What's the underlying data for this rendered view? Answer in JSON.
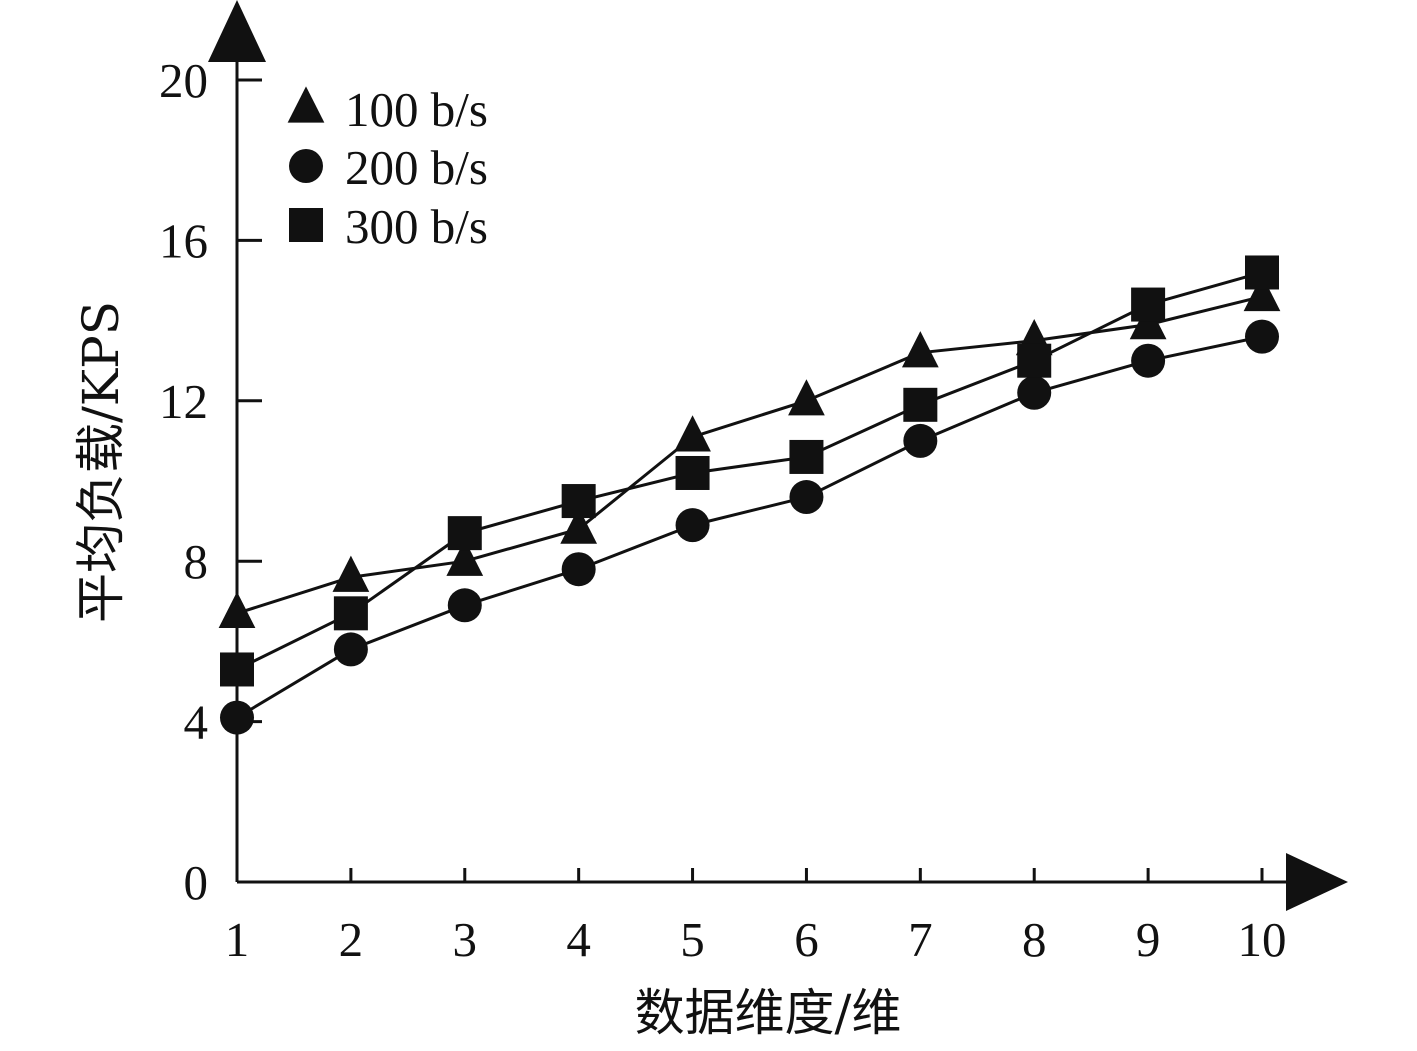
{
  "chart_data": {
    "type": "line",
    "x": [
      1,
      2,
      3,
      4,
      5,
      6,
      7,
      8,
      9,
      10
    ],
    "ylim": [
      0,
      20
    ],
    "xlabel": "数据维度/维",
    "ylabel": "平均负载/KPS",
    "x_ticks": [
      "1",
      "2",
      "3",
      "4",
      "5",
      "6",
      "7",
      "8",
      "9",
      "10"
    ],
    "y_ticks": [
      "0",
      "4",
      "8",
      "12",
      "16",
      "20"
    ],
    "grid": false,
    "legend_position": "top-left",
    "series": [
      {
        "name": "100 b/s",
        "marker": "triangle",
        "values": [
          6.7,
          7.6,
          8.0,
          8.8,
          11.1,
          12.0,
          13.2,
          13.5,
          13.9,
          14.6
        ]
      },
      {
        "name": "200 b/s",
        "marker": "circle",
        "values": [
          4.1,
          5.8,
          6.9,
          7.8,
          8.9,
          9.6,
          11.0,
          12.2,
          13.0,
          13.6
        ]
      },
      {
        "name": "300 b/s",
        "marker": "square",
        "values": [
          5.3,
          6.7,
          8.7,
          9.5,
          10.2,
          10.6,
          11.9,
          13.0,
          14.4,
          15.2
        ]
      }
    ],
    "colors": {
      "line": "#111111",
      "marker": "#111111",
      "background": "#ffffff"
    }
  }
}
